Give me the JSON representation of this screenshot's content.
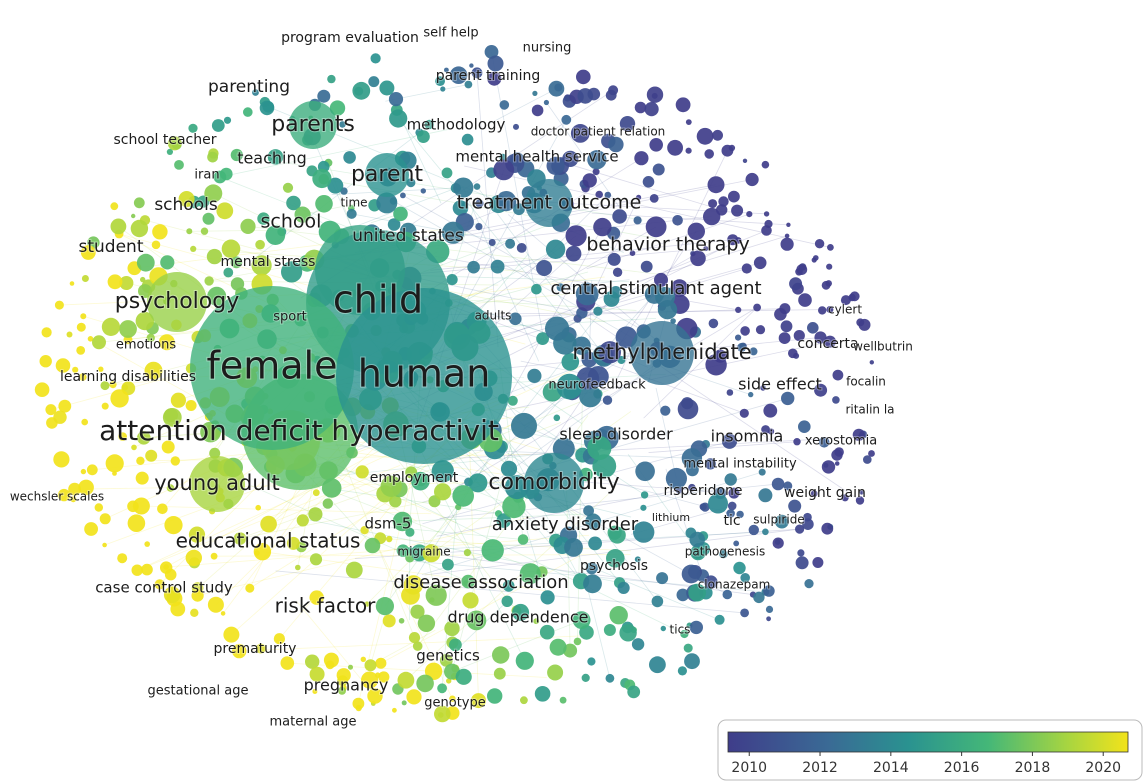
{
  "terms": [
    "program evaluation",
    "self help",
    "nursing",
    "parent training",
    "parenting",
    "school teacher",
    "parents",
    "methodology",
    "doctor patient relation",
    "teaching",
    "mental health service",
    "iran",
    "parent",
    "schools",
    "time",
    "treatment outcome",
    "school",
    "united states",
    "behavior therapy",
    "student",
    "mental stress",
    "central stimulant agent",
    "psychology",
    "child",
    "sport",
    "adults",
    "cylert",
    "methylphenidate",
    "concerta",
    "wellbutrin",
    "emotions",
    "female",
    "human",
    "learning disabilities",
    "neurofeedback",
    "side effect",
    "focalin",
    "ritalin la",
    "attention deficit hyperactivit",
    "sleep disorder",
    "insomnia",
    "xerostomia",
    "mental instability",
    "employment",
    "comorbidity",
    "young adult",
    "risperidone",
    "weight gain",
    "wechsler scales",
    "dsm-5",
    "anxiety disorder",
    "lithium",
    "tic",
    "sulpiride",
    "educational status",
    "migraine",
    "pathogenesis",
    "psychosis",
    "disease association",
    "case control study",
    "clonazepam",
    "risk factor",
    "drug dependence",
    "tics",
    "prematurity",
    "genetics",
    "pregnancy",
    "gestational age",
    "genotype",
    "maternal age"
  ],
  "legend": {
    "lim": [
      2009.4,
      2020.7
    ],
    "ticks": [
      2010,
      2012,
      2014,
      2016,
      2018,
      2020
    ]
  }
}
